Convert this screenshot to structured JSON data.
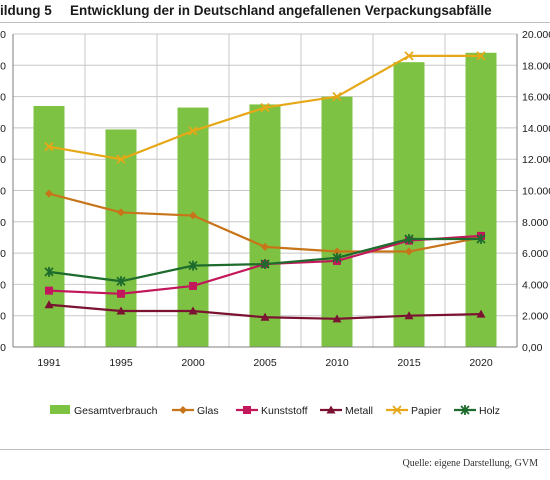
{
  "figure": {
    "number_label": "ildung 5",
    "title": "Entwicklung der in Deutschland angefallenen Verpackungsabfälle",
    "source": "Quelle: eigene Darstellung, GVM"
  },
  "colors": {
    "Gesamtverbrauch": "#7dc242",
    "Glas": "#c8741a",
    "Kunststoff": "#c2185b",
    "Metall": "#7b1232",
    "Papier": "#e6a817",
    "Holz": "#1e6b2e",
    "grid": "#c8c8c8",
    "axis": "#7f7f7f"
  },
  "chart_data": {
    "type": "bar",
    "categories": [
      "1991",
      "1995",
      "2000",
      "2005",
      "2010",
      "2015",
      "2020"
    ],
    "yticks_left": [
      "0",
      "0",
      "0",
      "0",
      "0",
      "0",
      "0",
      "0",
      "0",
      "0",
      "0"
    ],
    "yticks_right": [
      "0,00",
      "2.000",
      "4.000",
      "6.000",
      "8.000",
      "10.000",
      "12.000",
      "14.000",
      "16.000",
      "18.000",
      "20.000"
    ],
    "ylim_right": [
      0,
      20000
    ],
    "grid": true,
    "legend_position": "bottom",
    "series": [
      {
        "name": "Gesamtverbrauch",
        "type": "bar",
        "axis": "right",
        "values": [
          15400,
          13900,
          15300,
          15500,
          16000,
          18200,
          18800
        ]
      },
      {
        "name": "Glas",
        "type": "line",
        "marker": "diamond",
        "axis": "right",
        "values": [
          9800,
          8600,
          8400,
          6400,
          6100,
          6100,
          7000
        ]
      },
      {
        "name": "Kunststoff",
        "type": "line",
        "marker": "square",
        "axis": "right",
        "values": [
          3600,
          3400,
          3900,
          5300,
          5500,
          6800,
          7100
        ]
      },
      {
        "name": "Metall",
        "type": "line",
        "marker": "triangle",
        "axis": "right",
        "values": [
          2700,
          2300,
          2300,
          1900,
          1800,
          2000,
          2100
        ]
      },
      {
        "name": "Papier",
        "type": "line",
        "marker": "x",
        "axis": "right",
        "values": [
          12800,
          12000,
          13800,
          15300,
          16000,
          18600,
          18600
        ]
      },
      {
        "name": "Holz",
        "type": "line",
        "marker": "star",
        "axis": "right",
        "values": [
          4800,
          4200,
          5200,
          5300,
          5700,
          6900,
          6900
        ]
      }
    ]
  }
}
